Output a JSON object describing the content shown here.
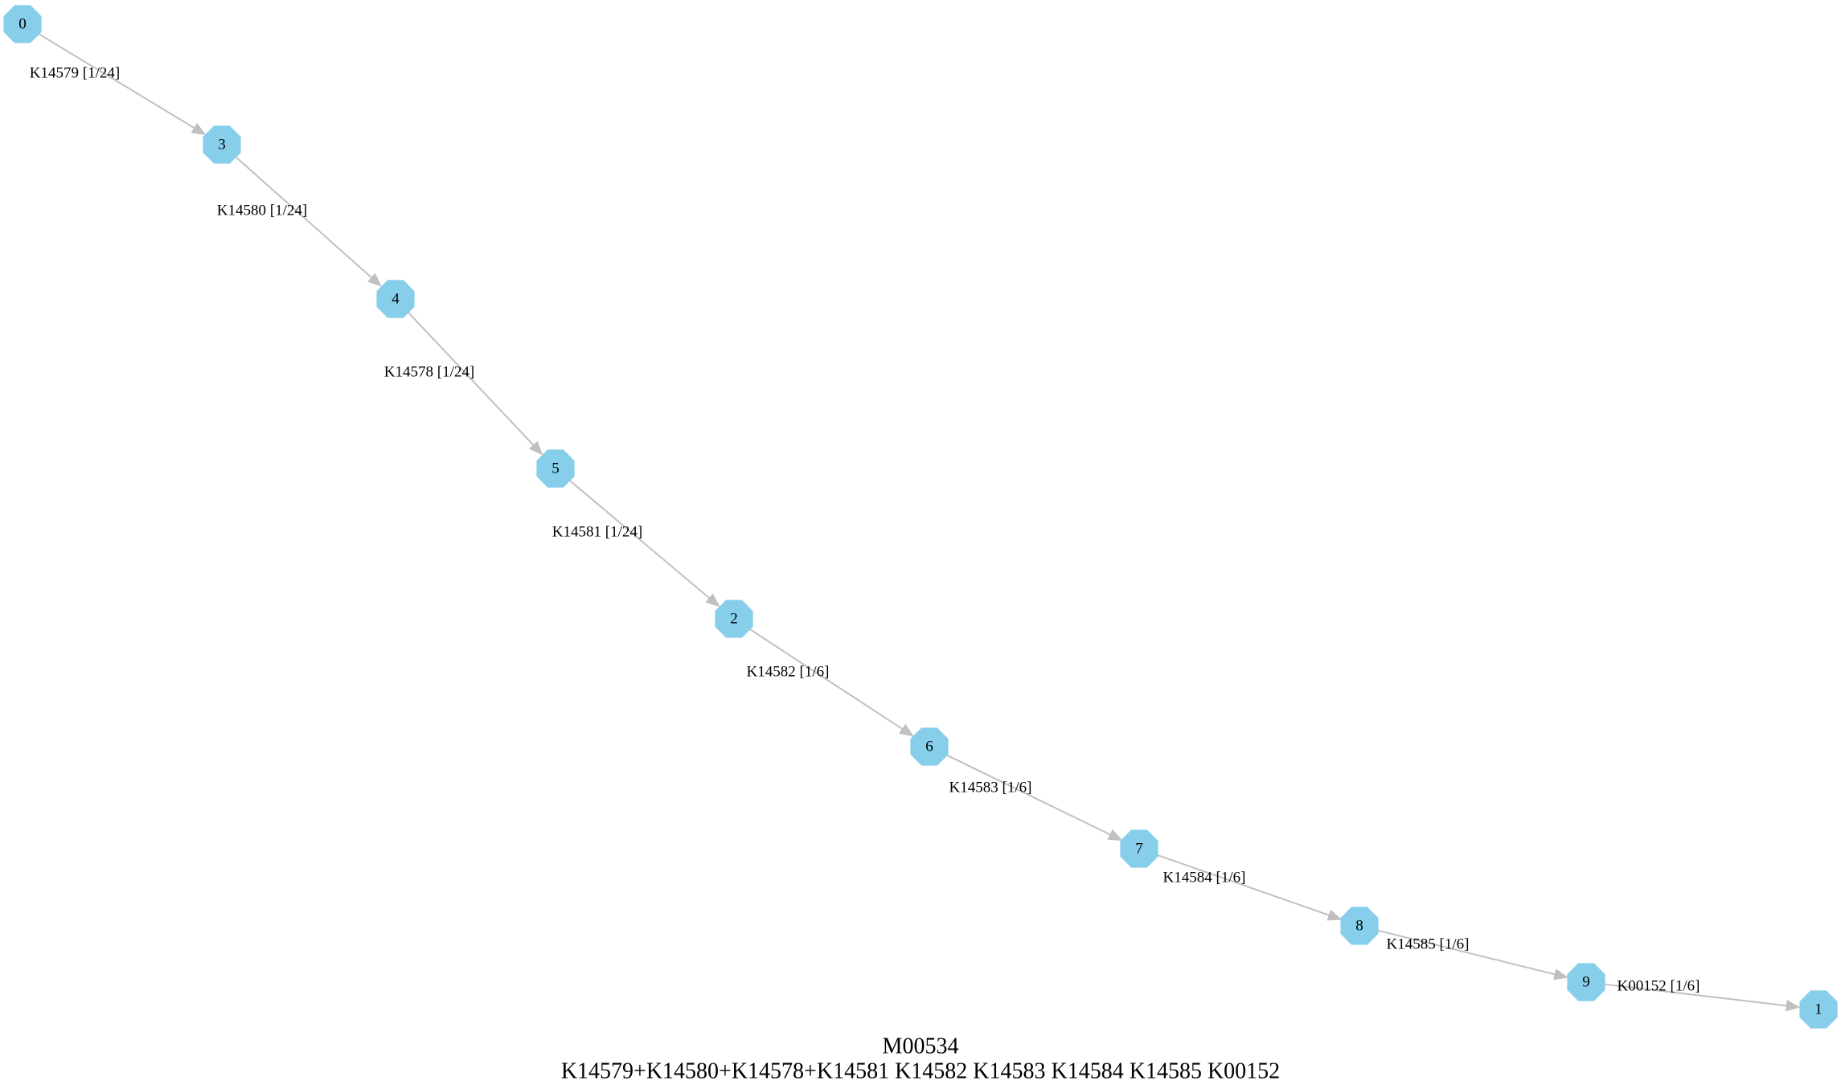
{
  "graph": {
    "node_color": "#87ceeb",
    "edge_color": "#c0c0c0",
    "nodes": [
      {
        "id": "0",
        "label": "0"
      },
      {
        "id": "3",
        "label": "3"
      },
      {
        "id": "4",
        "label": "4"
      },
      {
        "id": "5",
        "label": "5"
      },
      {
        "id": "2",
        "label": "2"
      },
      {
        "id": "6",
        "label": "6"
      },
      {
        "id": "7",
        "label": "7"
      },
      {
        "id": "8",
        "label": "8"
      },
      {
        "id": "9",
        "label": "9"
      },
      {
        "id": "1",
        "label": "1"
      }
    ],
    "edges": [
      {
        "from": "0",
        "to": "3",
        "label": "K14579 [1/24]"
      },
      {
        "from": "3",
        "to": "4",
        "label": "K14580 [1/24]"
      },
      {
        "from": "4",
        "to": "5",
        "label": "K14578 [1/24]"
      },
      {
        "from": "5",
        "to": "2",
        "label": "K14581 [1/24]"
      },
      {
        "from": "2",
        "to": "6",
        "label": "K14582 [1/6]"
      },
      {
        "from": "6",
        "to": "7",
        "label": "K14583 [1/6]"
      },
      {
        "from": "7",
        "to": "8",
        "label": "K14584 [1/6]"
      },
      {
        "from": "8",
        "to": "9",
        "label": "K14585 [1/6]"
      },
      {
        "from": "9",
        "to": "1",
        "label": "K00152 [1/6]"
      }
    ]
  },
  "caption": {
    "title": "M00534",
    "formula": "K14579+K14580+K14578+K14581 K14582 K14583 K14584 K14585 K00152"
  }
}
